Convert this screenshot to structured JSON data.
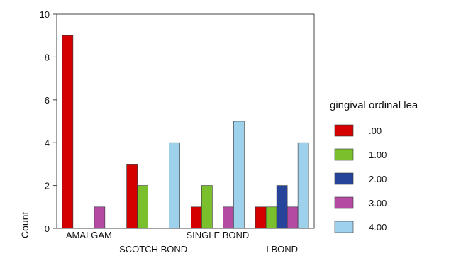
{
  "chart_data": {
    "type": "bar",
    "ylabel": "Count",
    "xlabel": "",
    "ylim": [
      0,
      10
    ],
    "yticks": [
      0,
      2,
      4,
      6,
      8,
      10
    ],
    "categories": [
      "AMALGAM",
      "SCOTCH BOND",
      "SINGLE BOND",
      "I BOND"
    ],
    "legend_title": "gingival ordinal lea",
    "legend_position": "right",
    "series": [
      {
        "name": ".00",
        "color": "#d40000",
        "values": [
          9,
          3,
          1,
          1
        ]
      },
      {
        "name": "1.00",
        "color": "#7ac02c",
        "values": [
          0,
          2,
          2,
          1
        ]
      },
      {
        "name": "2.00",
        "color": "#25449a",
        "values": [
          0,
          0,
          0,
          2
        ]
      },
      {
        "name": "3.00",
        "color": "#b54aa2",
        "values": [
          1,
          0,
          1,
          1
        ]
      },
      {
        "name": "4.00",
        "color": "#9ed2ec",
        "values": [
          0,
          4,
          5,
          4
        ]
      }
    ]
  }
}
